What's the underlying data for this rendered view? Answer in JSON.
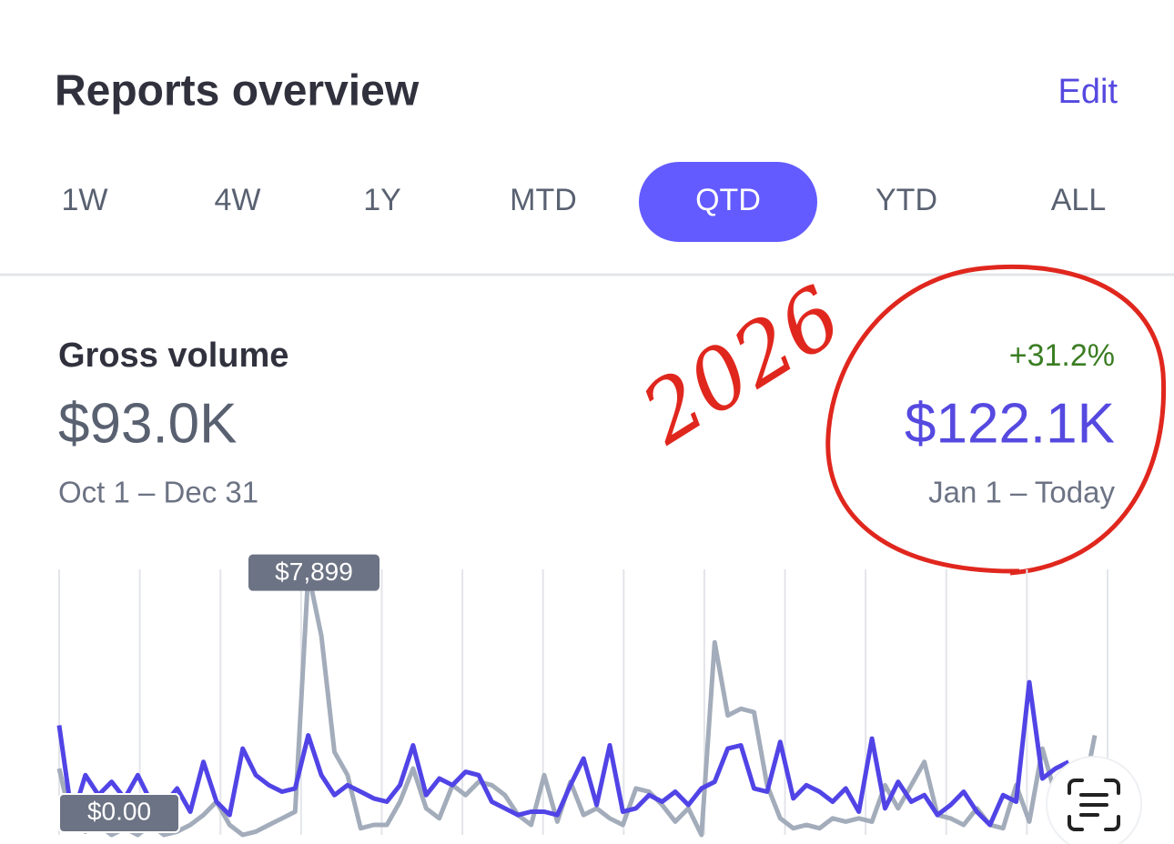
{
  "header": {
    "title": "Reports overview",
    "action": "Edit"
  },
  "tabs": [
    "1W",
    "4W",
    "1Y",
    "MTD",
    "QTD",
    "YTD",
    "ALL"
  ],
  "selected_tab": 4,
  "metric": {
    "title": "Gross volume",
    "previous_value": "$93.0K",
    "previous_range": "Oct 1 – Dec 31",
    "change": "+31.2%",
    "current_value": "$122.1K",
    "current_range": "Jan 1 – Today"
  },
  "annotation": "2026",
  "chart_data": {
    "type": "line",
    "ylim": [
      0,
      8000
    ],
    "series": [
      {
        "color": "#a3acba",
        "values": [
          2000,
          300,
          100,
          300,
          0,
          200,
          0,
          300,
          0,
          100,
          300,
          600,
          1000,
          300,
          0,
          100,
          300,
          500,
          700,
          7899,
          6000,
          2500,
          1800,
          200,
          300,
          300,
          1000,
          2000,
          800,
          500,
          1500,
          1200,
          1600,
          1500,
          1200,
          600,
          300,
          1800,
          400,
          1600,
          600,
          800,
          500,
          300,
          1400,
          1300,
          900,
          400,
          800,
          0,
          5800,
          3600,
          3800,
          3700,
          1500,
          500,
          200,
          300,
          200,
          500,
          400,
          500,
          400,
          1500,
          800,
          1500,
          2200,
          600,
          500,
          300,
          800,
          300,
          200,
          1500,
          400,
          2600,
          1200,
          400,
          1000,
          3000
        ]
      },
      {
        "color": "#5144e6",
        "values": [
          3300,
          500,
          1800,
          1200,
          1600,
          1100,
          1800,
          1000,
          900,
          1400,
          700,
          2200,
          1000,
          600,
          2600,
          1800,
          1500,
          1300,
          1400,
          3000,
          1800,
          1200,
          1500,
          1300,
          1100,
          1000,
          1500,
          2700,
          1200,
          1700,
          1500,
          1900,
          1800,
          1000,
          800,
          600,
          700,
          700,
          600,
          1500,
          2300,
          900,
          2700,
          700,
          800,
          1200,
          1000,
          1300,
          900,
          1400,
          1600,
          2600,
          2700,
          1400,
          1300,
          2800,
          1100,
          1500,
          1300,
          1000,
          1400,
          700,
          2900,
          800,
          1600,
          1000,
          1200,
          600,
          900,
          1300,
          700,
          300,
          1200,
          1000,
          4600,
          1700,
          2000,
          2200,
          null,
          null
        ]
      }
    ],
    "max_label": {
      "value": 7899,
      "label": "$7,899"
    },
    "min_label": {
      "value": 0,
      "label": "$0.00"
    }
  }
}
